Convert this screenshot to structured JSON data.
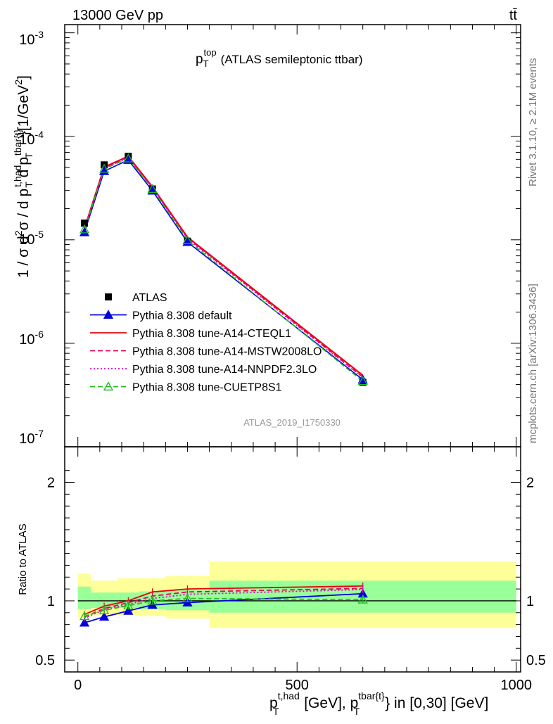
{
  "header": {
    "energy_label": "13000 GeV pp",
    "process_label": "tt̄"
  },
  "side_labels": {
    "rivet": "Rivet 3.1.10, ≥ 2.1M events",
    "mcplots": "mcplots.cern.ch [arXiv:1306.3436]"
  },
  "chart_data": [
    {
      "type": "line",
      "title": "p_T^top (ATLAS semileptonic ttbar)",
      "title_main": "p",
      "title_sub": "T",
      "title_sup": "top",
      "title_rest": "(ATLAS semileptonic ttbar)",
      "ylabel_parts": [
        "1 / σ d",
        "2",
        "σ / d p",
        "t,had",
        "T",
        " d p",
        "tbar{t}",
        "T",
        "}[1/GeV",
        "2",
        "]"
      ],
      "yscale": "log",
      "ylim": [
        1e-07,
        0.0012
      ],
      "xlim": [
        -30,
        1010
      ],
      "y_tick_labels": [
        "10⁻⁷",
        "10⁻⁶",
        "10⁻⁵",
        "10⁻⁴",
        "10⁻³"
      ],
      "y_tick_base": "10",
      "y_tick_exps": [
        "-7",
        "-6",
        "-5",
        "-4",
        "-3"
      ],
      "y_tick_values": [
        1e-07,
        1e-06,
        1e-05,
        0.0001,
        0.001
      ],
      "annotation": "ATLAS_2019_I1750330",
      "x": [
        15,
        60,
        115,
        170,
        250,
        650
      ],
      "series": [
        {
          "name": "ATLAS",
          "color": "#000000",
          "style": "data",
          "marker": "square",
          "values": [
            1.45e-05,
            5.3e-05,
            6.4e-05,
            3.1e-05,
            9.7e-06,
            4.2e-07
          ]
        },
        {
          "name": "Pythia 8.308 default",
          "color": "#0000dd",
          "style": "solid",
          "marker": "triangle-filled",
          "values": [
            1.18e-05,
            4.6e-05,
            5.9e-05,
            2.98e-05,
            9.5e-06,
            4.45e-07
          ]
        },
        {
          "name": "Pythia 8.308 tune-A14-CTEQL1",
          "color": "#e8000b",
          "style": "solid",
          "marker": "none",
          "values": [
            1.28e-05,
            5.05e-05,
            6.4e-05,
            3.25e-05,
            1.06e-05,
            4.9e-07
          ]
        },
        {
          "name": "Pythia 8.308 tune-A14-MSTW2008LO",
          "color": "#e8005a",
          "style": "dashed",
          "marker": "none",
          "values": [
            1.24e-05,
            4.95e-05,
            6.3e-05,
            3.2e-05,
            1.04e-05,
            4.7e-07
          ]
        },
        {
          "name": "Pythia 8.308 tune-A14-NNPDF2.3LO",
          "color": "#e000c8",
          "style": "dotted",
          "marker": "none",
          "values": [
            1.22e-05,
            4.9e-05,
            6.2e-05,
            3.15e-05,
            1.02e-05,
            4.65e-07
          ]
        },
        {
          "name": "Pythia 8.308 tune-CUETP8S1",
          "color": "#22bb22",
          "style": "dashed",
          "marker": "triangle-open",
          "values": [
            1.26e-05,
            4.85e-05,
            6.1e-05,
            3.1e-05,
            9.9e-06,
            4.3e-07
          ]
        }
      ]
    },
    {
      "type": "line",
      "ylabel": "Ratio to ATLAS",
      "xlabel_parts": [
        "p",
        "t,had",
        "T",
        " [GeV], p",
        "tbar{t}",
        "T",
        "} in [0,30] [GeV]"
      ],
      "ylim": [
        0.4,
        2.3
      ],
      "xlim": [
        -30,
        1010
      ],
      "y_ticks": [
        0.5,
        1,
        2
      ],
      "y_tick_labels": [
        "0.5",
        "1",
        "2"
      ],
      "x_ticks": [
        0,
        500,
        1000
      ],
      "x_tick_labels": [
        "0",
        "500",
        "1000"
      ],
      "uncertainty_bins": [
        {
          "x0": 0,
          "x1": 30,
          "inner": [
            0.93,
            1.12
          ],
          "outer": [
            0.86,
            1.23
          ]
        },
        {
          "x0": 30,
          "x1": 90,
          "inner": [
            0.94,
            1.07
          ],
          "outer": [
            0.88,
            1.17
          ]
        },
        {
          "x0": 90,
          "x1": 140,
          "inner": [
            0.94,
            1.07
          ],
          "outer": [
            0.88,
            1.19
          ]
        },
        {
          "x0": 140,
          "x1": 200,
          "inner": [
            0.93,
            1.08
          ],
          "outer": [
            0.87,
            1.19
          ]
        },
        {
          "x0": 200,
          "x1": 300,
          "inner": [
            0.92,
            1.09
          ],
          "outer": [
            0.85,
            1.21
          ]
        },
        {
          "x0": 300,
          "x1": 1000,
          "inner": [
            0.9,
            1.17
          ],
          "outer": [
            0.77,
            1.33
          ]
        }
      ],
      "x": [
        15,
        60,
        115,
        170,
        250,
        650
      ],
      "series": [
        {
          "name": "Pythia 8.308 default",
          "color": "#0000dd",
          "style": "solid",
          "marker": "triangle-filled",
          "values": [
            0.815,
            0.865,
            0.915,
            0.965,
            0.985,
            1.06
          ]
        },
        {
          "name": "Pythia 8.308 tune-A14-CTEQL1",
          "color": "#e8000b",
          "style": "solid",
          "marker": "none",
          "values": [
            0.885,
            0.955,
            1.0,
            1.075,
            1.1,
            1.125
          ]
        },
        {
          "name": "Pythia 8.308 tune-A14-MSTW2008LO",
          "color": "#e8005a",
          "style": "dashed",
          "marker": "none",
          "values": [
            0.865,
            0.935,
            0.985,
            1.04,
            1.075,
            1.105
          ]
        },
        {
          "name": "Pythia 8.308 tune-A14-NNPDF2.3LO",
          "color": "#e000c8",
          "style": "dotted",
          "marker": "none",
          "values": [
            0.855,
            0.925,
            0.97,
            1.02,
            1.055,
            1.095
          ]
        },
        {
          "name": "Pythia 8.308 tune-CUETP8S1",
          "color": "#22bb22",
          "style": "dashed",
          "marker": "triangle-open",
          "values": [
            0.87,
            0.92,
            0.96,
            1.0,
            1.02,
            1.01
          ]
        }
      ]
    }
  ]
}
